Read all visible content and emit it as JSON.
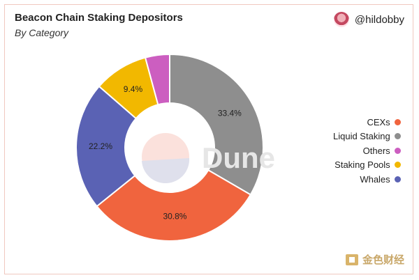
{
  "header": {
    "title": "Beacon Chain Staking Depositors",
    "subtitle": "By Category",
    "author": "@hildobby"
  },
  "watermark": {
    "dune": "Dune",
    "brand": "金色财经"
  },
  "chart_data": {
    "type": "pie",
    "title": "Beacon Chain Staking Depositors",
    "subtitle": "By Category",
    "donut": true,
    "legend_position": "right",
    "slices": [
      {
        "name": "Liquid Staking",
        "value": 33.4,
        "label": "33.4%",
        "color": "#8e8e8e"
      },
      {
        "name": "CEXs",
        "value": 30.8,
        "label": "30.8%",
        "color": "#f0643e"
      },
      {
        "name": "Whales",
        "value": 22.2,
        "label": "22.2%",
        "color": "#5a62b4"
      },
      {
        "name": "Staking Pools",
        "value": 9.4,
        "label": "9.4%",
        "color": "#f2b800"
      },
      {
        "name": "Others",
        "value": 4.2,
        "label": "",
        "color": "#cc5ec0"
      }
    ],
    "legend": [
      {
        "name": "CEXs",
        "color": "#f0643e"
      },
      {
        "name": "Liquid Staking",
        "color": "#8e8e8e"
      },
      {
        "name": "Others",
        "color": "#cc5ec0"
      },
      {
        "name": "Staking Pools",
        "color": "#f2b800"
      },
      {
        "name": "Whales",
        "color": "#5a62b4"
      }
    ]
  }
}
